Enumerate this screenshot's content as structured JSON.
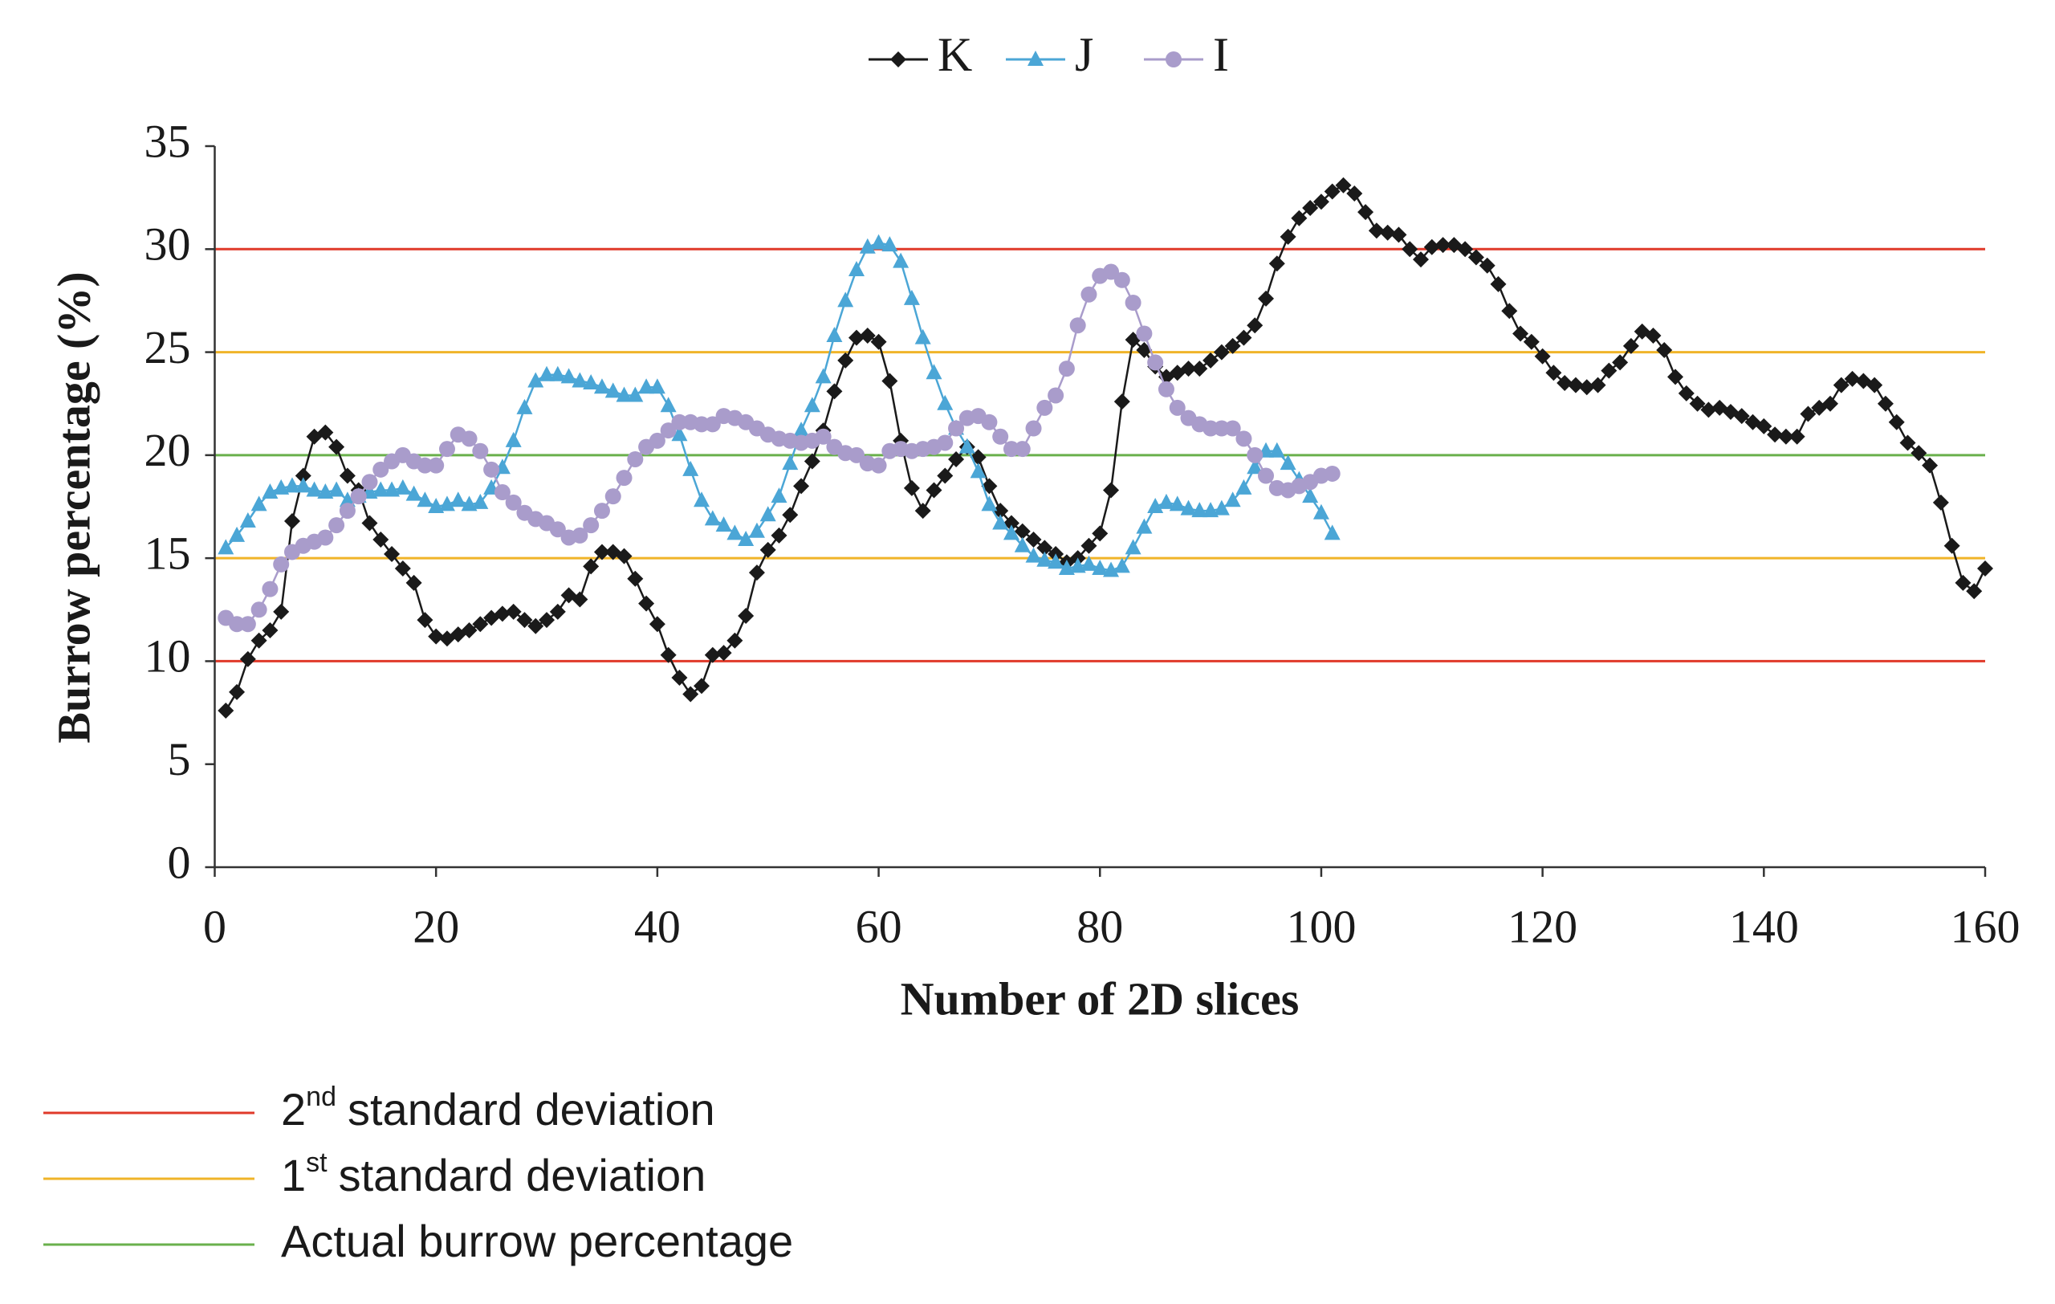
{
  "chart_data": {
    "type": "line",
    "x_label": "Number of 2D slices",
    "y_label": "Burrow percentage (%)",
    "xlim": [
      0,
      160
    ],
    "xticks": [
      0,
      20,
      40,
      60,
      80,
      100,
      120,
      140,
      160
    ],
    "ylim": [
      0,
      35
    ],
    "yticks": [
      0,
      5,
      10,
      15,
      20,
      25,
      30,
      35
    ],
    "series": [
      {
        "name": "K",
        "color": "#1a1a1a",
        "marker": "diamond",
        "x": [
          1,
          2,
          3,
          4,
          5,
          6,
          7,
          8,
          9,
          10,
          11,
          12,
          13,
          14,
          15,
          16,
          17,
          18,
          19,
          20,
          21,
          22,
          23,
          24,
          25,
          26,
          27,
          28,
          29,
          30,
          31,
          32,
          33,
          34,
          35,
          36,
          37,
          38,
          39,
          40,
          41,
          42,
          43,
          44,
          45,
          46,
          47,
          48,
          49,
          50,
          51,
          52,
          53,
          54,
          55,
          56,
          57,
          58,
          59,
          60,
          61,
          62,
          63,
          64,
          65,
          66,
          67,
          68,
          69,
          70,
          71,
          72,
          73,
          74,
          75,
          76,
          77,
          78,
          79,
          80,
          81,
          82,
          83,
          84,
          85,
          86,
          87,
          88,
          89,
          90,
          91,
          92,
          93,
          94,
          95,
          96,
          97,
          98,
          99,
          100,
          101,
          102,
          103,
          104,
          105,
          106,
          107,
          108,
          109,
          110,
          111,
          112,
          113,
          114,
          115,
          116,
          117,
          118,
          119,
          120,
          121,
          122,
          123,
          124,
          125,
          126,
          127,
          128,
          129,
          130,
          131,
          132,
          133,
          134,
          135,
          136,
          137,
          138,
          139,
          140,
          141,
          142,
          143,
          144,
          145,
          146,
          147,
          148,
          149,
          150,
          151,
          152,
          153,
          154,
          155,
          156,
          157,
          158,
          159,
          160
        ],
        "values": [
          7.6,
          8.5,
          10.1,
          11.0,
          11.5,
          12.4,
          16.8,
          19.0,
          20.9,
          21.1,
          20.4,
          19.0,
          18.3,
          16.7,
          15.9,
          15.2,
          14.5,
          13.8,
          12.0,
          11.2,
          11.1,
          11.3,
          11.5,
          11.8,
          12.1,
          12.3,
          12.4,
          12.0,
          11.7,
          12.0,
          12.4,
          13.2,
          13.0,
          14.6,
          15.3,
          15.3,
          15.1,
          14.0,
          12.8,
          11.8,
          10.3,
          9.2,
          8.4,
          8.8,
          10.3,
          10.4,
          11.0,
          12.2,
          14.3,
          15.4,
          16.1,
          17.1,
          18.5,
          19.7,
          21.2,
          23.1,
          24.6,
          25.7,
          25.8,
          25.5,
          23.6,
          20.7,
          18.4,
          17.3,
          18.3,
          19.0,
          19.8,
          20.4,
          19.9,
          18.5,
          17.3,
          16.7,
          16.3,
          15.9,
          15.5,
          15.2,
          14.8,
          15.0,
          15.6,
          16.2,
          18.3,
          22.6,
          25.6,
          25.1,
          24.3,
          23.8,
          24.0,
          24.2,
          24.2,
          24.6,
          25.0,
          25.3,
          25.7,
          26.3,
          27.6,
          29.3,
          30.6,
          31.5,
          32.0,
          32.3,
          32.8,
          33.1,
          32.7,
          31.8,
          30.9,
          30.8,
          30.7,
          30.0,
          29.5,
          30.1,
          30.2,
          30.2,
          30.0,
          29.6,
          29.2,
          28.3,
          27.0,
          25.9,
          25.5,
          24.8,
          24.0,
          23.5,
          23.4,
          23.3,
          23.4,
          24.1,
          24.5,
          25.3,
          26.0,
          25.8,
          25.1,
          23.8,
          23.0,
          22.5,
          22.2,
          22.3,
          22.1,
          21.9,
          21.6,
          21.4,
          21.0,
          20.9,
          20.9,
          22.0,
          22.3,
          22.5,
          23.4,
          23.7,
          23.6,
          23.4,
          22.5,
          21.6,
          20.6,
          20.1,
          19.5,
          17.7,
          15.6,
          13.8,
          13.4,
          14.5
        ]
      },
      {
        "name": "J",
        "color": "#4ba6d6",
        "marker": "triangle",
        "x": [
          1,
          2,
          3,
          4,
          5,
          6,
          7,
          8,
          9,
          10,
          11,
          12,
          13,
          14,
          15,
          16,
          17,
          18,
          19,
          20,
          21,
          22,
          23,
          24,
          25,
          26,
          27,
          28,
          29,
          30,
          31,
          32,
          33,
          34,
          35,
          36,
          37,
          38,
          39,
          40,
          41,
          42,
          43,
          44,
          45,
          46,
          47,
          48,
          49,
          50,
          51,
          52,
          53,
          54,
          55,
          56,
          57,
          58,
          59,
          60,
          61,
          62,
          63,
          64,
          65,
          66,
          67,
          68,
          69,
          70,
          71,
          72,
          73,
          74,
          75,
          76,
          77,
          78,
          79,
          80,
          81,
          82,
          83,
          84,
          85,
          86,
          87,
          88,
          89,
          90,
          91,
          92,
          93,
          94,
          95,
          96,
          97,
          98,
          99,
          100,
          101
        ],
        "values": [
          15.5,
          16.1,
          16.8,
          17.6,
          18.2,
          18.4,
          18.5,
          18.5,
          18.3,
          18.2,
          18.3,
          17.8,
          18.0,
          18.2,
          18.3,
          18.3,
          18.4,
          18.1,
          17.8,
          17.5,
          17.6,
          17.8,
          17.6,
          17.7,
          18.4,
          19.4,
          20.7,
          22.3,
          23.6,
          23.9,
          23.9,
          23.8,
          23.6,
          23.5,
          23.3,
          23.1,
          22.9,
          22.9,
          23.3,
          23.3,
          22.4,
          21.0,
          19.3,
          17.8,
          16.9,
          16.6,
          16.2,
          15.9,
          16.3,
          17.1,
          18.0,
          19.6,
          21.2,
          22.4,
          23.8,
          25.8,
          27.5,
          29.0,
          30.1,
          30.3,
          30.2,
          29.4,
          27.6,
          25.7,
          24.0,
          22.5,
          21.3,
          20.4,
          19.2,
          17.6,
          16.7,
          16.2,
          15.6,
          15.1,
          14.9,
          14.8,
          14.5,
          14.6,
          14.7,
          14.5,
          14.4,
          14.6,
          15.5,
          16.5,
          17.5,
          17.7,
          17.6,
          17.4,
          17.3,
          17.3,
          17.4,
          17.8,
          18.4,
          19.4,
          20.2,
          20.2,
          19.6,
          18.8,
          18.0,
          17.2,
          16.2
        ]
      },
      {
        "name": "I",
        "color": "#a99ccb",
        "marker": "circle",
        "x": [
          1,
          2,
          3,
          4,
          5,
          6,
          7,
          8,
          9,
          10,
          11,
          12,
          13,
          14,
          15,
          16,
          17,
          18,
          19,
          20,
          21,
          22,
          23,
          24,
          25,
          26,
          27,
          28,
          29,
          30,
          31,
          32,
          33,
          34,
          35,
          36,
          37,
          38,
          39,
          40,
          41,
          42,
          43,
          44,
          45,
          46,
          47,
          48,
          49,
          50,
          51,
          52,
          53,
          54,
          55,
          56,
          57,
          58,
          59,
          60,
          61,
          62,
          63,
          64,
          65,
          66,
          67,
          68,
          69,
          70,
          71,
          72,
          73,
          74,
          75,
          76,
          77,
          78,
          79,
          80,
          81,
          82,
          83,
          84,
          85,
          86,
          87,
          88,
          89,
          90,
          91,
          92,
          93,
          94,
          95,
          96,
          97,
          98,
          99,
          100,
          101
        ],
        "values": [
          12.1,
          11.8,
          11.8,
          12.5,
          13.5,
          14.7,
          15.3,
          15.6,
          15.8,
          16.0,
          16.6,
          17.3,
          18.0,
          18.7,
          19.3,
          19.7,
          20.0,
          19.7,
          19.5,
          19.5,
          20.3,
          21.0,
          20.8,
          20.2,
          19.3,
          18.2,
          17.7,
          17.2,
          16.9,
          16.7,
          16.4,
          16.0,
          16.1,
          16.6,
          17.3,
          18.0,
          18.9,
          19.8,
          20.4,
          20.7,
          21.2,
          21.6,
          21.6,
          21.5,
          21.5,
          21.9,
          21.8,
          21.6,
          21.3,
          21.0,
          20.8,
          20.7,
          20.6,
          20.7,
          20.9,
          20.4,
          20.1,
          20.0,
          19.6,
          19.5,
          20.2,
          20.3,
          20.2,
          20.3,
          20.4,
          20.6,
          21.3,
          21.8,
          21.9,
          21.6,
          20.9,
          20.3,
          20.3,
          21.3,
          22.3,
          22.9,
          24.2,
          26.3,
          27.8,
          28.7,
          28.9,
          28.5,
          27.4,
          25.9,
          24.5,
          23.2,
          22.3,
          21.8,
          21.5,
          21.3,
          21.3,
          21.3,
          20.8,
          20.0,
          19.0,
          18.4,
          18.3,
          18.5,
          18.7,
          19.0,
          19.1
        ]
      }
    ],
    "reference_lines": [
      {
        "number": "2",
        "suffix": "nd",
        "text": "standard deviation",
        "color": "#e03a2a",
        "values": [
          10,
          30
        ]
      },
      {
        "number": "1",
        "suffix": "st",
        "text": "standard deviation",
        "color": "#f0b429",
        "values": [
          15,
          25
        ]
      },
      {
        "text": "Actual burrow percentage",
        "color": "#6ab04c",
        "values": [
          20
        ]
      }
    ]
  }
}
